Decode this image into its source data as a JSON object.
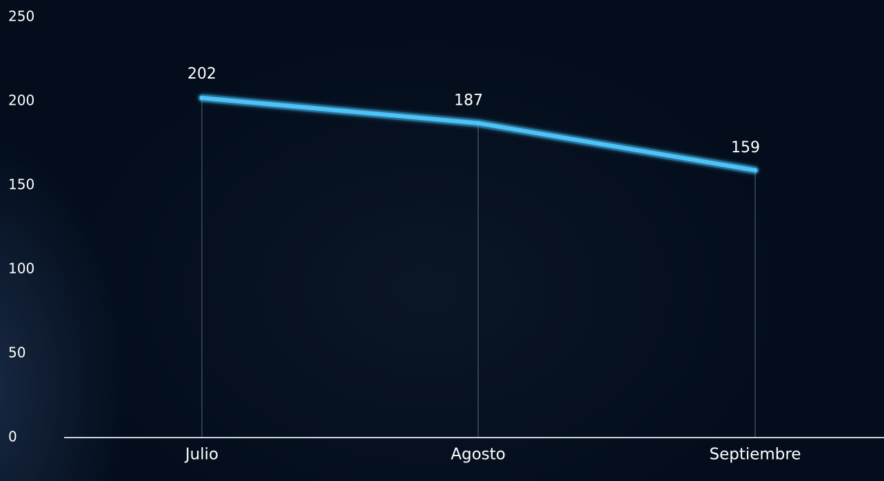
{
  "chart_data": {
    "type": "line",
    "categories": [
      "Julio",
      "Agosto",
      "Septiembre"
    ],
    "series": [
      {
        "values": [
          202,
          187,
          159
        ]
      }
    ],
    "data_labels": [
      "202",
      "187",
      "159"
    ],
    "y_ticks": [
      0,
      50,
      100,
      150,
      200,
      250
    ],
    "y_tick_labels": [
      "0",
      "50",
      "100",
      "150",
      "200",
      "250"
    ],
    "ylim": [
      0,
      250
    ],
    "grid": false,
    "xlabel": "",
    "ylabel": "",
    "title": "",
    "colors": {
      "line": "#4fc3f7",
      "glow": "#2aa8e0",
      "drop_line": "#5a6a7a",
      "axis": "#d0d6dc",
      "text": "#ffffff",
      "background": "#030d1c"
    }
  }
}
